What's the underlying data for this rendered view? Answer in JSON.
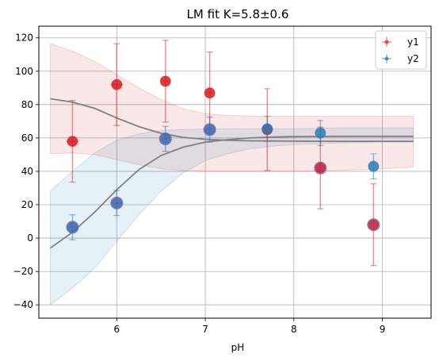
{
  "chart_data": {
    "type": "scatter",
    "title": "LM fit K=5.8±0.6",
    "xlabel": "pH",
    "ylabel": "",
    "xlim": [
      5.12,
      9.55
    ],
    "ylim": [
      -48,
      127
    ],
    "xticks": [
      6,
      7,
      8,
      9
    ],
    "yticks": [
      -40,
      -20,
      0,
      20,
      40,
      60,
      80,
      100,
      120
    ],
    "grid": true,
    "legend_position": "top-right",
    "series": [
      {
        "name": "y1",
        "color": "#d62728",
        "marker_fill": "#d7191c",
        "x": [
          5.5,
          6.0,
          6.55,
          7.05,
          7.7,
          8.3,
          8.9
        ],
        "y": [
          58,
          92,
          94,
          87,
          65,
          42,
          8
        ],
        "yerr": [
          24.5,
          24.5,
          24.5,
          24.5,
          24.5,
          24.5,
          24.5
        ],
        "xerr": [
          0.07,
          0.07,
          0.03,
          0.03,
          0.0,
          0.0,
          0.0
        ],
        "fit_x": [
          5.25,
          5.5,
          5.75,
          6.0,
          6.25,
          6.5,
          6.75,
          7.0,
          7.25,
          7.5,
          7.75,
          8.0,
          8.5,
          9.0,
          9.35
        ],
        "fit_y": [
          83.5,
          81.5,
          77.8,
          72.0,
          66.8,
          62.8,
          60.4,
          59.2,
          58.6,
          58.3,
          58.2,
          58.1,
          58.0,
          58.0,
          58.0
        ],
        "band_upper": [
          116.5,
          112,
          106,
          98,
          90,
          83,
          77.5,
          74.5,
          73.5,
          73.2,
          73,
          73,
          73,
          73,
          73
        ],
        "band_lower": [
          50.5,
          51,
          50,
          47,
          44,
          41.5,
          40.5,
          40,
          40,
          40,
          40,
          40,
          40.5,
          41.5,
          42.5
        ]
      },
      {
        "name": "y2",
        "color": "#1f77b4",
        "marker_fill": "#2c7bb6",
        "x": [
          5.5,
          6.0,
          6.55,
          7.05,
          7.7,
          8.3,
          8.9
        ],
        "y": [
          6.5,
          21,
          59.5,
          65,
          65.5,
          63,
          43
        ],
        "yerr": [
          7.5,
          7.5,
          7.5,
          7.5,
          7.5,
          7.5,
          7.5
        ],
        "xerr": [
          0.07,
          0.07,
          0.03,
          0.03,
          0.0,
          0.0,
          0.0
        ],
        "fit_x": [
          5.25,
          5.5,
          5.75,
          6.0,
          6.25,
          6.5,
          6.75,
          7.0,
          7.25,
          7.5,
          7.75,
          8.0,
          8.5,
          9.0,
          9.35
        ],
        "fit_y": [
          -6,
          3.5,
          15.5,
          29,
          41,
          49.5,
          54.5,
          57.5,
          59,
          60,
          60.5,
          60.8,
          61,
          61,
          61
        ],
        "band_upper": [
          28.5,
          40,
          51,
          58.5,
          62.5,
          64.5,
          65,
          65.5,
          65.5,
          65.5,
          65.5,
          65.5,
          66,
          66,
          66
        ],
        "band_lower": [
          -40,
          -30,
          -18,
          -2,
          14,
          28,
          39,
          46.5,
          50.5,
          53.5,
          55,
          56,
          57,
          57.5,
          57.5
        ]
      }
    ],
    "overlap_markers": [
      {
        "x": 5.5,
        "y": 6.5
      },
      {
        "x": 6.0,
        "y": 21
      },
      {
        "x": 6.55,
        "y": 59.5
      },
      {
        "x": 7.05,
        "y": 65
      },
      {
        "x": 8.3,
        "y": 42
      },
      {
        "x": 8.9,
        "y": 8
      }
    ],
    "fit_line_color": "#808080"
  }
}
